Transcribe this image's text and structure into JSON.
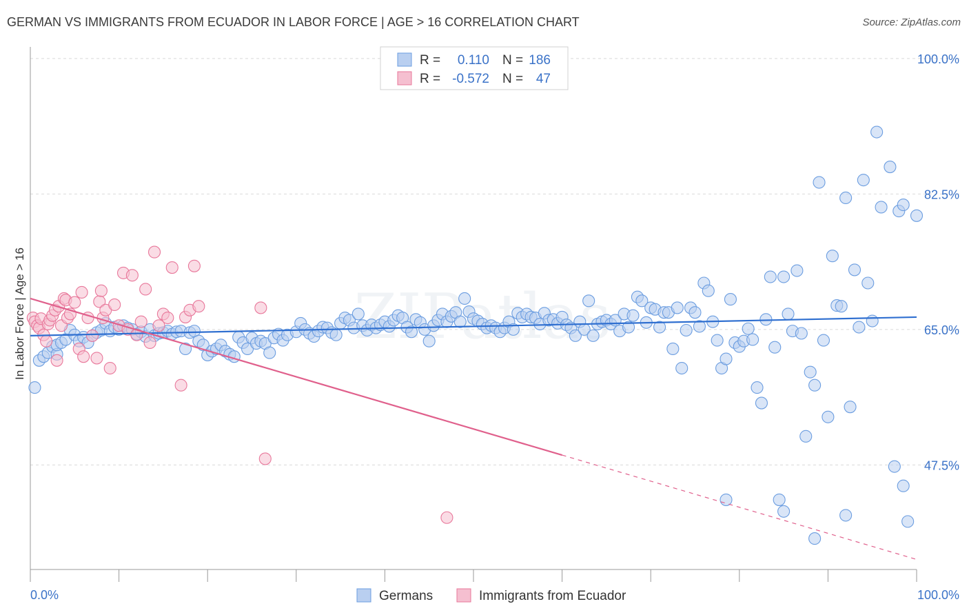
{
  "chart_data": {
    "type": "scatter",
    "title": "GERMAN VS IMMIGRANTS FROM ECUADOR IN LABOR FORCE | AGE > 16 CORRELATION CHART",
    "source": "Source: ZipAtlas.com",
    "xlabel": "",
    "ylabel": "In Labor Force | Age > 16",
    "xlim": [
      0,
      100
    ],
    "ylim": [
      34,
      101.5
    ],
    "x_tick_labels": [
      "0.0%",
      "100.0%"
    ],
    "y_ticks": [
      {
        "value": 100,
        "label": "100.0%"
      },
      {
        "value": 82.5,
        "label": "82.5%"
      },
      {
        "value": 65,
        "label": "65.0%"
      },
      {
        "value": 47.5,
        "label": "47.5%"
      }
    ],
    "grid": true,
    "watermark": "ZIPatlas",
    "legend_top": [
      {
        "r_label": "R =",
        "r_value": "0.110",
        "n_label": "N =",
        "n_value": "186"
      },
      {
        "r_label": "R =",
        "r_value": "-0.572",
        "n_label": "N =",
        "n_value": "47"
      }
    ],
    "series": [
      {
        "name": "Germans",
        "color": "#6b9de0",
        "fill": "#b9cff0",
        "trend": {
          "x0": 0,
          "y0": 64.2,
          "x1": 100,
          "y1": 66.6,
          "dashed_from": null
        },
        "points": [
          [
            0.5,
            57.5
          ],
          [
            1,
            61
          ],
          [
            1.5,
            61.5
          ],
          [
            2,
            62
          ],
          [
            2.5,
            62.8
          ],
          [
            3,
            61.8
          ],
          [
            3,
            63
          ],
          [
            3.5,
            63.3
          ],
          [
            4,
            63.7
          ],
          [
            4.5,
            64.9
          ],
          [
            5,
            64.3
          ],
          [
            5.5,
            63.5
          ],
          [
            6,
            64
          ],
          [
            6.5,
            63.3
          ],
          [
            7,
            64.2
          ],
          [
            7.5,
            64.6
          ],
          [
            8,
            64.9
          ],
          [
            8.5,
            65.8
          ],
          [
            9,
            64.8
          ],
          [
            9.5,
            65.3
          ],
          [
            10,
            65
          ],
          [
            10.5,
            65.5
          ],
          [
            11,
            65.2
          ],
          [
            11.5,
            65
          ],
          [
            12,
            64.4
          ],
          [
            12.5,
            64.7
          ],
          [
            13,
            64.1
          ],
          [
            13.5,
            65
          ],
          [
            14,
            64.2
          ],
          [
            14.5,
            64.5
          ],
          [
            15,
            64.6
          ],
          [
            15.5,
            64.8
          ],
          [
            16,
            64.4
          ],
          [
            16.5,
            64.7
          ],
          [
            17,
            64.8
          ],
          [
            17.5,
            62.5
          ],
          [
            18,
            64.6
          ],
          [
            18.5,
            64.8
          ],
          [
            19,
            63.5
          ],
          [
            19.5,
            63
          ],
          [
            20,
            61.7
          ],
          [
            20.5,
            62.2
          ],
          [
            21,
            62.5
          ],
          [
            21.5,
            63
          ],
          [
            22,
            62.2
          ],
          [
            22.5,
            61.8
          ],
          [
            23,
            61.5
          ],
          [
            23.5,
            64
          ],
          [
            24,
            63.3
          ],
          [
            24.5,
            62.5
          ],
          [
            25,
            63.9
          ],
          [
            25.5,
            63.2
          ],
          [
            26,
            63.5
          ],
          [
            26.5,
            63.2
          ],
          [
            27,
            62
          ],
          [
            27.5,
            63.9
          ],
          [
            28,
            64.4
          ],
          [
            28.5,
            63.6
          ],
          [
            29,
            64.3
          ],
          [
            30,
            64.7
          ],
          [
            30.5,
            65.8
          ],
          [
            31,
            65
          ],
          [
            31.5,
            64.5
          ],
          [
            32,
            64.1
          ],
          [
            32.5,
            64.8
          ],
          [
            33,
            65.3
          ],
          [
            33.5,
            65.2
          ],
          [
            34,
            64.6
          ],
          [
            34.5,
            64.3
          ],
          [
            35,
            65.8
          ],
          [
            35.5,
            66.5
          ],
          [
            36,
            66.2
          ],
          [
            36.5,
            65.2
          ],
          [
            37,
            67
          ],
          [
            37.5,
            65.5
          ],
          [
            38,
            64.9
          ],
          [
            38.5,
            65.6
          ],
          [
            39,
            65.2
          ],
          [
            39.5,
            65.6
          ],
          [
            40,
            66
          ],
          [
            40.5,
            65.4
          ],
          [
            41,
            66.2
          ],
          [
            41.5,
            66.8
          ],
          [
            42,
            66.5
          ],
          [
            42.5,
            65.3
          ],
          [
            43,
            64.7
          ],
          [
            43.5,
            66.3
          ],
          [
            44,
            65.9
          ],
          [
            44.5,
            65
          ],
          [
            45,
            63.5
          ],
          [
            45.5,
            65.5
          ],
          [
            46,
            66.2
          ],
          [
            46.5,
            67
          ],
          [
            47,
            66
          ],
          [
            47.5,
            66.7
          ],
          [
            48,
            67.2
          ],
          [
            48.5,
            66
          ],
          [
            49,
            69
          ],
          [
            49.5,
            67.3
          ],
          [
            50,
            66.4
          ],
          [
            50.5,
            66.1
          ],
          [
            51,
            65.7
          ],
          [
            51.5,
            65.2
          ],
          [
            52,
            65.5
          ],
          [
            52.5,
            65.2
          ],
          [
            53,
            64.7
          ],
          [
            53.5,
            65.2
          ],
          [
            54,
            66
          ],
          [
            54.5,
            65
          ],
          [
            55,
            67.1
          ],
          [
            55.5,
            66.6
          ],
          [
            56,
            67
          ],
          [
            56.5,
            66.6
          ],
          [
            57,
            66.5
          ],
          [
            57.5,
            65.7
          ],
          [
            58,
            67.1
          ],
          [
            58.5,
            66.2
          ],
          [
            59,
            66.3
          ],
          [
            59.5,
            65.8
          ],
          [
            60,
            66.6
          ],
          [
            60.5,
            65.6
          ],
          [
            61,
            65.2
          ],
          [
            61.5,
            64.2
          ],
          [
            62,
            66
          ],
          [
            62.5,
            65
          ],
          [
            63,
            68.7
          ],
          [
            63.5,
            64.2
          ],
          [
            64,
            65.7
          ],
          [
            64.5,
            66
          ],
          [
            65,
            66.2
          ],
          [
            65.5,
            65.7
          ],
          [
            66,
            66.2
          ],
          [
            66.5,
            64.8
          ],
          [
            67,
            67
          ],
          [
            67.5,
            65.3
          ],
          [
            68,
            66.8
          ],
          [
            68.5,
            69.2
          ],
          [
            69,
            68.7
          ],
          [
            69.5,
            65.9
          ],
          [
            70,
            67.8
          ],
          [
            70.5,
            67.6
          ],
          [
            71,
            65.3
          ],
          [
            71.5,
            67.2
          ],
          [
            72,
            67.2
          ],
          [
            72.5,
            62.5
          ],
          [
            73,
            67.8
          ],
          [
            73.5,
            60
          ],
          [
            74,
            64.9
          ],
          [
            74.5,
            67.8
          ],
          [
            75,
            67.2
          ],
          [
            75.5,
            65.4
          ],
          [
            76,
            71
          ],
          [
            76.5,
            70
          ],
          [
            77,
            66
          ],
          [
            77.5,
            63.6
          ],
          [
            78,
            60
          ],
          [
            78.5,
            61.2
          ],
          [
            79,
            68.9
          ],
          [
            79.5,
            63.3
          ],
          [
            80,
            62.8
          ],
          [
            80.5,
            63.5
          ],
          [
            81,
            65.1
          ],
          [
            81.5,
            63.7
          ],
          [
            82,
            57.5
          ],
          [
            82.5,
            55.5
          ],
          [
            83,
            66.3
          ],
          [
            83.5,
            71.8
          ],
          [
            84,
            62.7
          ],
          [
            85,
            71.8
          ],
          [
            85.5,
            67
          ],
          [
            86,
            64.8
          ],
          [
            86.5,
            72.6
          ],
          [
            87,
            64.5
          ],
          [
            87.5,
            51.2
          ],
          [
            88,
            59.5
          ],
          [
            88.5,
            57.8
          ],
          [
            89,
            84
          ],
          [
            89.5,
            63.6
          ],
          [
            90,
            53.7
          ],
          [
            90.5,
            74.5
          ],
          [
            91,
            68.1
          ],
          [
            91.5,
            68
          ],
          [
            92,
            82
          ],
          [
            92.5,
            55
          ],
          [
            93,
            72.7
          ],
          [
            93.5,
            65.3
          ],
          [
            94,
            84.3
          ],
          [
            94.5,
            71
          ],
          [
            95,
            66.1
          ],
          [
            95.5,
            90.5
          ],
          [
            96,
            80.8
          ],
          [
            97,
            86
          ],
          [
            98,
            80.3
          ],
          [
            98.5,
            81.1
          ],
          [
            100,
            79.7
          ],
          [
            78.5,
            43
          ],
          [
            84.5,
            43
          ],
          [
            85,
            41.5
          ],
          [
            97.5,
            47.3
          ],
          [
            98.5,
            44.8
          ],
          [
            99,
            40.2
          ],
          [
            92,
            41
          ],
          [
            88.5,
            38
          ]
        ]
      },
      {
        "name": "Immigrants from Ecuador",
        "color": "#e8779a",
        "fill": "#f5bfd0",
        "trend": {
          "x0": 0,
          "y0": 69.0,
          "x1": 100,
          "y1": 35.3,
          "dashed_from": 60
        },
        "points": [
          [
            0.3,
            66.5
          ],
          [
            0.5,
            66
          ],
          [
            0.8,
            65.5
          ],
          [
            1,
            65.2
          ],
          [
            1.2,
            66.4
          ],
          [
            1.5,
            64.3
          ],
          [
            1.8,
            63.5
          ],
          [
            2,
            65.7
          ],
          [
            2.2,
            66.2
          ],
          [
            2.5,
            66.8
          ],
          [
            2.8,
            67.5
          ],
          [
            3,
            61
          ],
          [
            3.2,
            68
          ],
          [
            3.5,
            65.5
          ],
          [
            3.8,
            69
          ],
          [
            4,
            68.8
          ],
          [
            4.2,
            66.5
          ],
          [
            4.5,
            67
          ],
          [
            5,
            68.5
          ],
          [
            5.5,
            62.5
          ],
          [
            5.8,
            69.8
          ],
          [
            6,
            61.5
          ],
          [
            6.5,
            66.5
          ],
          [
            7,
            64.2
          ],
          [
            7.5,
            61.3
          ],
          [
            7.8,
            68.6
          ],
          [
            8,
            70
          ],
          [
            8.2,
            66.5
          ],
          [
            8.5,
            67.5
          ],
          [
            9,
            60
          ],
          [
            9.5,
            68.2
          ],
          [
            10,
            65.5
          ],
          [
            10.5,
            72.3
          ],
          [
            11,
            65
          ],
          [
            11.5,
            72
          ],
          [
            12,
            64.3
          ],
          [
            12.5,
            66
          ],
          [
            13,
            70.2
          ],
          [
            13.5,
            63.3
          ],
          [
            14,
            75
          ],
          [
            14.5,
            65.5
          ],
          [
            15,
            67
          ],
          [
            15.5,
            66.5
          ],
          [
            16,
            73
          ],
          [
            17,
            57.8
          ],
          [
            17.5,
            66.6
          ],
          [
            18,
            67.5
          ],
          [
            18.5,
            73.2
          ],
          [
            19,
            68
          ],
          [
            26,
            67.8
          ],
          [
            26.5,
            48.3
          ],
          [
            47,
            40.7
          ]
        ]
      }
    ]
  }
}
